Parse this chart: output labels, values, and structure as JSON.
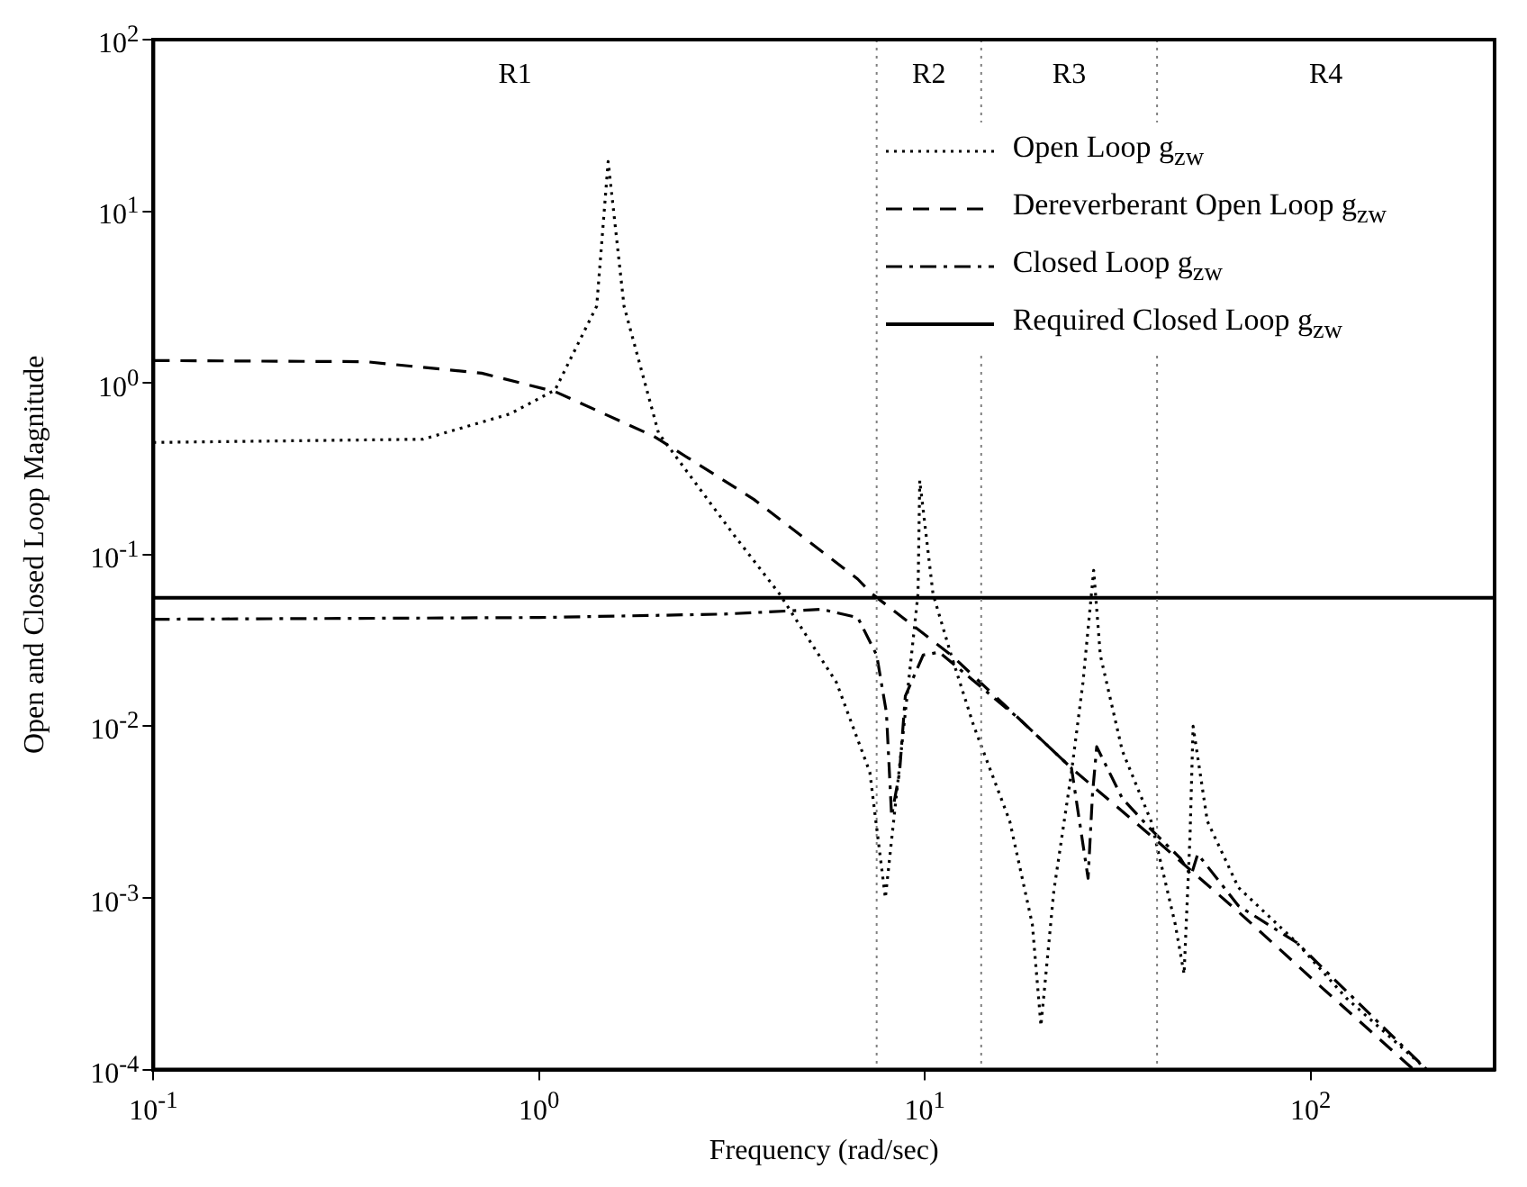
{
  "chart_data": {
    "type": "line",
    "xlabel": "Frequency (rad/sec)",
    "ylabel": "Open and Closed Loop Magnitude",
    "log": "xy",
    "grid": false,
    "legend": "top right",
    "marker": "none",
    "xlim": [
      0.1,
      300
    ],
    "ylim": [
      0.0001,
      100
    ],
    "xticks": [
      {
        "value": 0.1,
        "label": "10$^{-1}$"
      },
      {
        "value": 1,
        "label": "10$^{0}$"
      },
      {
        "value": 10,
        "label": "10$^{1}$"
      },
      {
        "value": 100,
        "label": "10$^{2}$"
      }
    ],
    "yticks": [
      {
        "value": 0.0001,
        "label": "10$^{-4}$"
      },
      {
        "value": 0.001,
        "label": "10$^{-3}$"
      },
      {
        "value": 0.01,
        "label": "10$^{-2}$"
      },
      {
        "value": 0.1,
        "label": "10$^{-1}$"
      },
      {
        "value": 1,
        "label": "10$^{0}$"
      },
      {
        "value": 10,
        "label": "10$^{1}$"
      },
      {
        "value": 100,
        "label": "10$^{2}$"
      }
    ],
    "ref_lines": [
      {
        "axis": "x",
        "value": 7.5,
        "color": "#808080",
        "line_style": "dotted"
      },
      {
        "axis": "x",
        "value": 14,
        "color": "#808080",
        "line_style": "dotted"
      },
      {
        "axis": "x",
        "value": 40,
        "color": "#808080",
        "line_style": "dotted"
      }
    ],
    "annotations": [
      "R1",
      "R2",
      "R3",
      "R4"
    ],
    "series": [
      {
        "name": "Open Loop g$_{zw}$",
        "color": "#000000",
        "line_style": "dotted",
        "x": [
          0.1,
          0.5,
          0.84,
          1.1,
          1.41,
          1.51,
          1.66,
          2.04,
          3.2,
          4.2,
          5.9,
          7.2,
          7.9,
          8.9,
          9.6,
          9.7,
          10.5,
          11.7,
          13.4,
          16.6,
          19,
          20,
          21.6,
          24,
          25.7,
          27.4,
          28.5,
          32.5,
          38.6,
          44.6,
          47,
          48.7,
          49.6,
          54,
          65,
          92,
          124,
          200
        ],
        "values": [
          0.45,
          0.47,
          0.66,
          0.91,
          2.8,
          19.5,
          2.8,
          0.51,
          0.13,
          0.059,
          0.018,
          0.0054,
          0.001,
          0.012,
          0.059,
          0.27,
          0.059,
          0.026,
          0.01,
          0.0028,
          0.0007,
          0.00018,
          0.0011,
          0.0054,
          0.018,
          0.081,
          0.026,
          0.0072,
          0.0028,
          0.0007,
          0.00036,
          0.0023,
          0.01,
          0.0028,
          0.00115,
          0.00055,
          0.00026,
          0.0001
        ]
      },
      {
        "name": "Dereverberant Open Loop g$_{zw}$",
        "color": "#000000",
        "line_style": "dashed",
        "x": [
          0.1,
          0.355,
          0.71,
          1.1,
          1.98,
          3.6,
          6.7,
          7.3,
          11.7,
          17.6,
          24,
          38.6,
          65,
          107,
          185
        ],
        "values": [
          1.35,
          1.33,
          1.14,
          0.89,
          0.49,
          0.21,
          0.072,
          0.059,
          0.026,
          0.011,
          0.0057,
          0.0023,
          0.00083,
          0.0003,
          0.0001
        ]
      },
      {
        "name": "Closed Loop g$_{zw}$",
        "color": "#000000",
        "line_style": "dashdot",
        "x": [
          0.1,
          1,
          3,
          5.4,
          6.7,
          7.5,
          7.95,
          8.2,
          8.6,
          8.9,
          9.9,
          10.9,
          17.6,
          24,
          26.5,
          27.2,
          27.9,
          32.5,
          38.6,
          46,
          49,
          51,
          65,
          92,
          200
        ],
        "values": [
          0.042,
          0.043,
          0.045,
          0.048,
          0.043,
          0.026,
          0.012,
          0.003,
          0.0054,
          0.015,
          0.026,
          0.027,
          0.011,
          0.0057,
          0.0013,
          0.004,
          0.0076,
          0.0038,
          0.0025,
          0.0017,
          0.00135,
          0.0018,
          0.0009,
          0.00055,
          0.0001
        ]
      },
      {
        "name": "Required Closed Loop g$_{zw}$",
        "color": "#000000",
        "line_style": "solid",
        "x": [
          0.1,
          300
        ],
        "values": [
          0.056,
          0.056
        ]
      }
    ]
  }
}
